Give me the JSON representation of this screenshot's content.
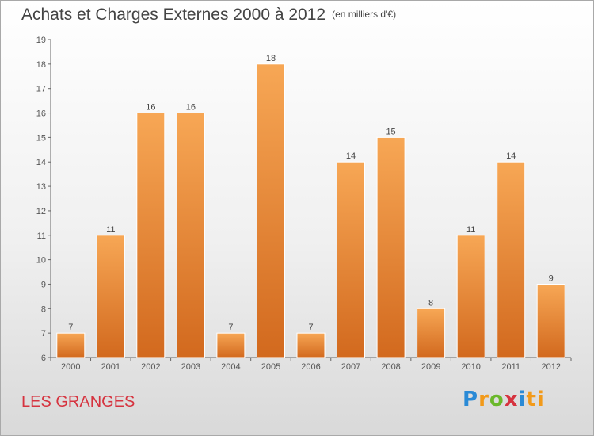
{
  "title": "Achats et Charges Externes 2000 à 2012",
  "subtitle": "(en milliers d'€)",
  "location": "LES GRANGES",
  "logo": {
    "text": "Proxiti"
  },
  "colors": {
    "bar_light": "#f7a755",
    "bar_dark": "#d2691e",
    "title": "#444444",
    "location": "#d6333f",
    "axis": "#555555"
  },
  "chart_data": {
    "type": "bar",
    "title": "Achats et Charges Externes 2000 à 2012",
    "subtitle": "(en milliers d'€)",
    "categories": [
      "2000",
      "2001",
      "2002",
      "2003",
      "2004",
      "2005",
      "2006",
      "2007",
      "2008",
      "2009",
      "2010",
      "2011",
      "2012"
    ],
    "values": [
      7,
      11,
      16,
      16,
      7,
      18,
      7,
      14,
      15,
      8,
      11,
      14,
      9
    ],
    "data_labels": [
      "7",
      "11",
      "16",
      "16",
      "7",
      "18",
      "7",
      "14",
      "15",
      "8",
      "11",
      "14",
      "9"
    ],
    "ylim": [
      6,
      19
    ],
    "yticks": [
      "6",
      "7",
      "8",
      "9",
      "10",
      "11",
      "12",
      "13",
      "14",
      "15",
      "16",
      "17",
      "18",
      "19"
    ],
    "xlabel": "",
    "ylabel": "",
    "grid": false,
    "legend": "none"
  }
}
